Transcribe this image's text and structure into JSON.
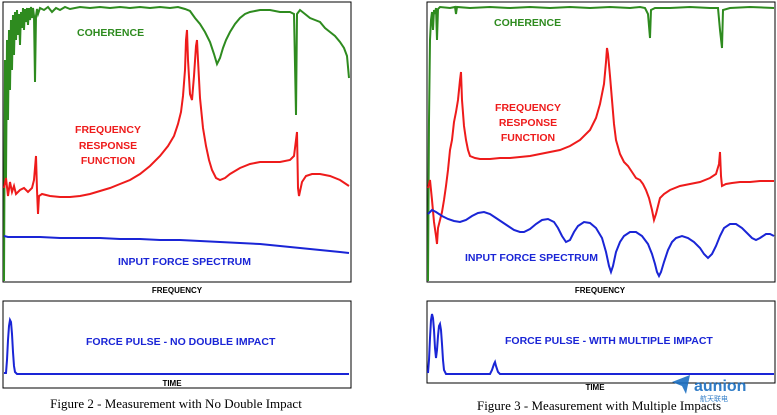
{
  "colors": {
    "coherence": "#2e8b1f",
    "frf": "#ee1b1b",
    "force": "#1a25d6",
    "frame": "#000000"
  },
  "chart_data": [
    {
      "type": "line",
      "panel": "left-top",
      "xlabel": "FREQUENCY",
      "series": [
        {
          "name": "COHERENCE",
          "color": "#2e8b1f"
        },
        {
          "name": "FREQUENCY RESPONSE FUNCTION",
          "label_lines": [
            "FREQUENCY",
            "RESPONSE",
            "FUNCTION"
          ],
          "color": "#ee1b1b"
        },
        {
          "name": "INPUT FORCE SPECTRUM",
          "color": "#1a25d6"
        }
      ]
    },
    {
      "type": "line",
      "panel": "left-bottom",
      "xlabel": "TIME",
      "series": [
        {
          "name": "FORCE PULSE - NO DOUBLE IMPACT",
          "color": "#1a25d6"
        }
      ]
    },
    {
      "type": "line",
      "panel": "right-top",
      "xlabel": "FREQUENCY",
      "series": [
        {
          "name": "COHERENCE",
          "color": "#2e8b1f"
        },
        {
          "name": "FREQUENCY RESPONSE FUNCTION",
          "label_lines": [
            "FREQUENCY",
            "RESPONSE",
            "FUNCTION"
          ],
          "color": "#ee1b1b"
        },
        {
          "name": "INPUT FORCE SPECTRUM",
          "color": "#1a25d6"
        }
      ]
    },
    {
      "type": "line",
      "panel": "right-bottom",
      "xlabel": "TIME",
      "series": [
        {
          "name": "FORCE PULSE - WITH MULTIPLE IMPACT",
          "color": "#1a25d6"
        }
      ]
    }
  ],
  "captions": {
    "left": "Figure 2 - Measurement with No Double Impact",
    "right": "Figure 3 - Measurement with Multiple Impacts"
  },
  "watermark": {
    "brand": "aunion",
    "sub": "航天联电"
  }
}
